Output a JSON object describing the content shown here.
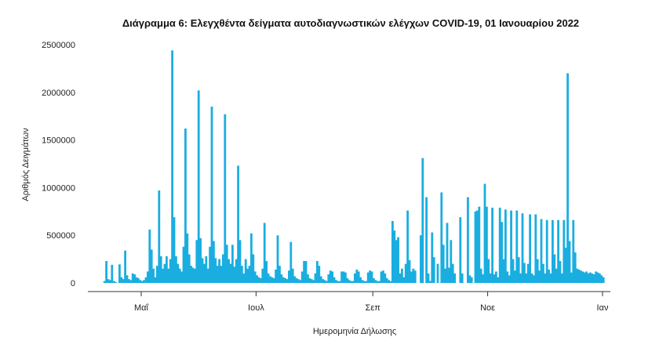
{
  "chart_data": {
    "type": "bar",
    "title": "Διάγραμμα 6: Ελεγχθέντα δείγματα αυτοδιαγνωστικών ελέγχων COVID-19, 01 Ιανουαρίου 2022",
    "xlabel": "Ημερομηνία Δήλωσης",
    "ylabel": "Αριθμός Δειγμάτων",
    "ylim": [
      0,
      2500000
    ],
    "yticks": [
      "0",
      "500000",
      "1000000",
      "1500000",
      "2000000",
      "2500000"
    ],
    "ytick_values": [
      0,
      500000,
      1000000,
      1500000,
      2000000,
      2500000
    ],
    "xticks": [
      {
        "label": "Μαΐ",
        "day": 20
      },
      {
        "label": "Ιουλ",
        "day": 81
      },
      {
        "label": "Σεπ",
        "day": 143
      },
      {
        "label": "Νοε",
        "day": 204
      },
      {
        "label": "Ιαν",
        "day": 265
      }
    ],
    "start_date": "2021-04-11",
    "bar_color": "#1aaee0",
    "grid": false,
    "values": [
      20000,
      230000,
      40000,
      30000,
      190000,
      20000,
      10000,
      0,
      195000,
      60000,
      40000,
      340000,
      80000,
      40000,
      30000,
      100000,
      90000,
      60000,
      50000,
      30000,
      20000,
      30000,
      60000,
      120000,
      560000,
      350000,
      150000,
      60000,
      180000,
      970000,
      280000,
      150000,
      200000,
      280000,
      150000,
      250000,
      2440000,
      690000,
      280000,
      200000,
      150000,
      120000,
      380000,
      1620000,
      520000,
      300000,
      180000,
      160000,
      150000,
      450000,
      2020000,
      470000,
      260000,
      200000,
      280000,
      150000,
      380000,
      1850000,
      440000,
      260000,
      180000,
      250000,
      180000,
      300000,
      1770000,
      400000,
      250000,
      200000,
      400000,
      170000,
      250000,
      1230000,
      450000,
      180000,
      100000,
      250000,
      150000,
      180000,
      520000,
      300000,
      120000,
      80000,
      60000,
      50000,
      150000,
      630000,
      230000,
      100000,
      70000,
      60000,
      50000,
      140000,
      500000,
      180000,
      90000,
      60000,
      50000,
      40000,
      130000,
      430000,
      150000,
      70000,
      50000,
      40000,
      30000,
      120000,
      230000,
      230000,
      90000,
      50000,
      40000,
      30000,
      100000,
      230000,
      180000,
      70000,
      40000,
      30000,
      20000,
      90000,
      130000,
      120000,
      60000,
      30000,
      20000,
      20000,
      120000,
      120000,
      110000,
      50000,
      30000,
      20000,
      20000,
      100000,
      140000,
      120000,
      60000,
      30000,
      20000,
      20000,
      110000,
      130000,
      120000,
      50000,
      30000,
      20000,
      20000,
      120000,
      130000,
      100000,
      50000,
      30000,
      20000,
      650000,
      550000,
      450000,
      480000,
      100000,
      150000,
      60000,
      200000,
      760000,
      240000,
      120000,
      150000,
      130000,
      0,
      0,
      500000,
      1310000,
      0,
      900000,
      100000,
      20000,
      530000,
      270000,
      0,
      200000,
      0,
      950000,
      400000,
      150000,
      630000,
      160000,
      450000,
      200000,
      100000,
      0,
      0,
      690000,
      100000,
      0,
      0,
      900000,
      80000,
      60000,
      0,
      750000,
      760000,
      800000,
      150000,
      90000,
      1040000,
      800000,
      250000,
      100000,
      790000,
      90000,
      120000,
      60000,
      790000,
      640000,
      250000,
      770000,
      120000,
      80000,
      760000,
      250000,
      130000,
      760000,
      270000,
      100000,
      730000,
      210000,
      100000,
      200000,
      720000,
      100000,
      80000,
      720000,
      250000,
      130000,
      670000,
      200000,
      100000,
      660000,
      140000,
      100000,
      660000,
      300000,
      150000,
      660000,
      230000,
      100000,
      660000,
      370000,
      2200000,
      440000,
      110000,
      660000,
      320000,
      150000,
      140000,
      130000,
      120000,
      110000,
      120000,
      100000,
      110000,
      100000,
      90000,
      120000,
      110000,
      100000,
      80000,
      60000
    ]
  }
}
